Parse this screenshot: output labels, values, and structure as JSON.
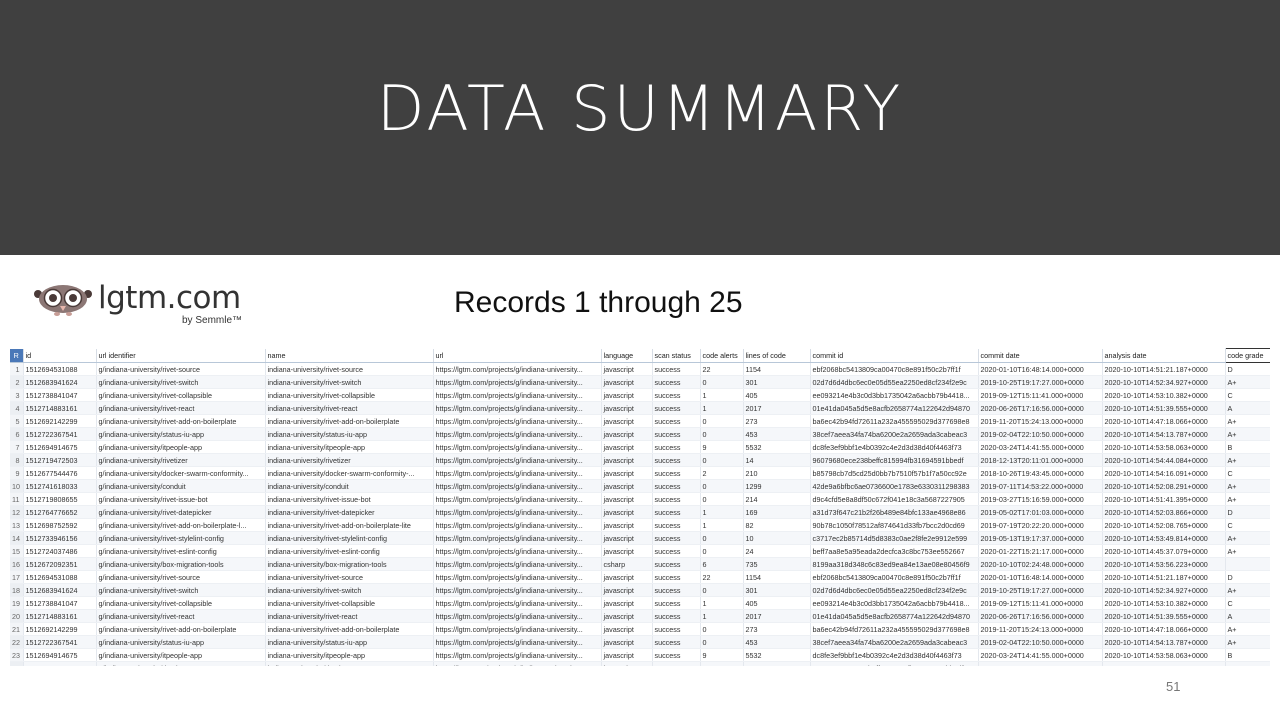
{
  "slide": {
    "title": "DATA SUMMARY",
    "subtitle": "Records 1 through 25",
    "page_number": "51"
  },
  "logo": {
    "text": "lgtm.com",
    "byline": "by Semmle™"
  },
  "grid": {
    "corner": "R",
    "columns": [
      "id",
      "url identifier",
      "name",
      "url",
      "language",
      "scan status",
      "code alerts",
      "lines of code",
      "commit id",
      "commit date",
      "analysis date",
      "code grade"
    ],
    "rows": [
      [
        "1",
        "1512694531088",
        "g/indiana-university/rivet-source",
        "indiana-university/rivet-source",
        "https://lgtm.com/projects/g/indiana-university...",
        "javascript",
        "success",
        "22",
        "1154",
        "ebf2068bc5413809ca00470c8e891f50c2b7ff1f",
        "2020-01-10T16:48:14.000+0000",
        "2020-10-10T14:51:21.187+0000",
        "D"
      ],
      [
        "2",
        "1512683941624",
        "g/indiana-university/rivet-switch",
        "indiana-university/rivet-switch",
        "https://lgtm.com/projects/g/indiana-university...",
        "javascript",
        "success",
        "0",
        "301",
        "02d7d6d4dbc6ec0e05d55ea2250ed8cf234f2e9c",
        "2019-10-25T19:17:27.000+0000",
        "2020-10-10T14:52:34.927+0000",
        "A+"
      ],
      [
        "3",
        "1512738841047",
        "g/indiana-university/rivet-collapsible",
        "indiana-university/rivet-collapsible",
        "https://lgtm.com/projects/g/indiana-university...",
        "javascript",
        "success",
        "1",
        "405",
        "ee093214e4b3c0d3bb1735042a6acbb79b4418...",
        "2019-09-12T15:11:41.000+0000",
        "2020-10-10T14:53:10.382+0000",
        "C"
      ],
      [
        "4",
        "1512714883161",
        "g/indiana-university/rivet-react",
        "indiana-university/rivet-react",
        "https://lgtm.com/projects/g/indiana-university...",
        "javascript",
        "success",
        "1",
        "2017",
        "01e41da045a5d5e8acfb2658774a122642d94870",
        "2020-06-26T17:16:56.000+0000",
        "2020-10-10T14:51:39.555+0000",
        "A"
      ],
      [
        "5",
        "1512692142299",
        "g/indiana-university/rivet-add-on-boilerplate",
        "indiana-university/rivet-add-on-boilerplate",
        "https://lgtm.com/projects/g/indiana-university...",
        "javascript",
        "success",
        "0",
        "273",
        "ba6ec42b94fd72611a232a455595029d377698e8",
        "2019-11-20T15:24:13.000+0000",
        "2020-10-10T14:47:18.066+0000",
        "A+"
      ],
      [
        "6",
        "1512722367541",
        "g/indiana-university/status-iu-app",
        "indiana-university/status-iu-app",
        "https://lgtm.com/projects/g/indiana-university...",
        "javascript",
        "success",
        "0",
        "453",
        "38cef7aeea34fa74ba6200e2a2659ada3cabeac3",
        "2019-02-04T22:10:50.000+0000",
        "2020-10-10T14:54:13.787+0000",
        "A+"
      ],
      [
        "7",
        "1512694914675",
        "g/indiana-university/itpeople-app",
        "indiana-university/itpeople-app",
        "https://lgtm.com/projects/g/indiana-university...",
        "javascript",
        "success",
        "9",
        "5532",
        "dc8fe3ef9bbf1e4b0392c4e2d3d38d40f4463f73",
        "2020-03-24T14:41:55.000+0000",
        "2020-10-10T14:53:58.063+0000",
        "B"
      ],
      [
        "8",
        "1512719472503",
        "g/indiana-university/rivetizer",
        "indiana-university/rivetizer",
        "https://lgtm.com/projects/g/indiana-university...",
        "javascript",
        "success",
        "0",
        "14",
        "96079680ece238beffc815994fb31694591bbedf",
        "2018-12-13T20:11:01.000+0000",
        "2020-10-10T14:54:44.084+0000",
        "A+"
      ],
      [
        "9",
        "1512677544476",
        "g/indiana-university/docker-swarm-conformity...",
        "indiana-university/docker-swarm-conformity-...",
        "https://lgtm.com/projects/g/indiana-university...",
        "javascript",
        "success",
        "2",
        "210",
        "b85798cb7d5cd25d0bb7b7510f57b1f7a50cc92e",
        "2018-10-26T19:43:45.000+0000",
        "2020-10-10T14:54:16.091+0000",
        "C"
      ],
      [
        "10",
        "1512741618033",
        "g/indiana-university/conduit",
        "indiana-university/conduit",
        "https://lgtm.com/projects/g/indiana-university...",
        "javascript",
        "success",
        "0",
        "1299",
        "42de9a6bfbc6ae0736600e1783e6330311298383",
        "2019-07-11T14:53:22.000+0000",
        "2020-10-10T14:52:08.291+0000",
        "A+"
      ],
      [
        "11",
        "1512719808655",
        "g/indiana-university/rivet-issue-bot",
        "indiana-university/rivet-issue-bot",
        "https://lgtm.com/projects/g/indiana-university...",
        "javascript",
        "success",
        "0",
        "214",
        "d9c4cfd5e8a8df50c672f041e18c3a5687227905",
        "2019-03-27T15:16:59.000+0000",
        "2020-10-10T14:51:41.395+0000",
        "A+"
      ],
      [
        "12",
        "1512764776652",
        "g/indiana-university/rivet-datepicker",
        "indiana-university/rivet-datepicker",
        "https://lgtm.com/projects/g/indiana-university...",
        "javascript",
        "success",
        "1",
        "169",
        "a31d73f647c21b2f26b489e84bfc133ae4968e86",
        "2019-05-02T17:01:03.000+0000",
        "2020-10-10T14:52:03.866+0000",
        "D"
      ],
      [
        "13",
        "1512698752592",
        "g/indiana-university/rivet-add-on-boilerplate-l...",
        "indiana-university/rivet-add-on-boilerplate-lite",
        "https://lgtm.com/projects/g/indiana-university...",
        "javascript",
        "success",
        "1",
        "82",
        "90b78c1050f78512af874641d33fb7bcc2d0cd69",
        "2019-07-19T20:22:20.000+0000",
        "2020-10-10T14:52:08.765+0000",
        "C"
      ],
      [
        "14",
        "1512733946156",
        "g/indiana-university/rivet-stylelint-config",
        "indiana-university/rivet-stylelint-config",
        "https://lgtm.com/projects/g/indiana-university...",
        "javascript",
        "success",
        "0",
        "10",
        "c3717ec2b85714d5d8383c0ae2f8fe2e9912e599",
        "2019-05-13T19:17:37.000+0000",
        "2020-10-10T14:53:49.814+0000",
        "A+"
      ],
      [
        "15",
        "1512724037486",
        "g/indiana-university/rivet-eslint-config",
        "indiana-university/rivet-eslint-config",
        "https://lgtm.com/projects/g/indiana-university...",
        "javascript",
        "success",
        "0",
        "24",
        "beff7aa8e5a95eada2decfca3c8bc753ee552667",
        "2020-01-22T15:21:17.000+0000",
        "2020-10-10T14:45:37.079+0000",
        "A+"
      ],
      [
        "16",
        "1512672092351",
        "g/indiana-university/box-migration-tools",
        "indiana-university/box-migration-tools",
        "https://lgtm.com/projects/g/indiana-university...",
        "csharp",
        "success",
        "6",
        "735",
        "8199aa318d348c6c83ed9ea84e13ae08e80456f9",
        "2020-10-10T02:24:48.000+0000",
        "2020-10-10T14:53:56.223+0000",
        ""
      ],
      [
        "17",
        "1512694531088",
        "g/indiana-university/rivet-source",
        "indiana-university/rivet-source",
        "https://lgtm.com/projects/g/indiana-university...",
        "javascript",
        "success",
        "22",
        "1154",
        "ebf2068bc5413809ca00470c8e891f50c2b7ff1f",
        "2020-01-10T16:48:14.000+0000",
        "2020-10-10T14:51:21.187+0000",
        "D"
      ],
      [
        "18",
        "1512683941624",
        "g/indiana-university/rivet-switch",
        "indiana-university/rivet-switch",
        "https://lgtm.com/projects/g/indiana-university...",
        "javascript",
        "success",
        "0",
        "301",
        "02d7d6d4dbc6ec0e05d55ea2250ed8cf234f2e9c",
        "2019-10-25T19:17:27.000+0000",
        "2020-10-10T14:52:34.927+0000",
        "A+"
      ],
      [
        "19",
        "1512738841047",
        "g/indiana-university/rivet-collapsible",
        "indiana-university/rivet-collapsible",
        "https://lgtm.com/projects/g/indiana-university...",
        "javascript",
        "success",
        "1",
        "405",
        "ee093214e4b3c0d3bb1735042a6acbb79b4418...",
        "2019-09-12T15:11:41.000+0000",
        "2020-10-10T14:53:10.382+0000",
        "C"
      ],
      [
        "20",
        "1512714883161",
        "g/indiana-university/rivet-react",
        "indiana-university/rivet-react",
        "https://lgtm.com/projects/g/indiana-university...",
        "javascript",
        "success",
        "1",
        "2017",
        "01e41da045a5d5e8acfb2658774a122642d94870",
        "2020-06-26T17:16:56.000+0000",
        "2020-10-10T14:51:39.555+0000",
        "A"
      ],
      [
        "21",
        "1512692142299",
        "g/indiana-university/rivet-add-on-boilerplate",
        "indiana-university/rivet-add-on-boilerplate",
        "https://lgtm.com/projects/g/indiana-university...",
        "javascript",
        "success",
        "0",
        "273",
        "ba6ec42b94fd72611a232a455595029d377698e8",
        "2019-11-20T15:24:13.000+0000",
        "2020-10-10T14:47:18.066+0000",
        "A+"
      ],
      [
        "22",
        "1512722367541",
        "g/indiana-university/status-iu-app",
        "indiana-university/status-iu-app",
        "https://lgtm.com/projects/g/indiana-university...",
        "javascript",
        "success",
        "0",
        "453",
        "38cef7aeea34fa74ba6200e2a2659ada3cabeac3",
        "2019-02-04T22:10:50.000+0000",
        "2020-10-10T14:54:13.787+0000",
        "A+"
      ],
      [
        "23",
        "1512694914675",
        "g/indiana-university/itpeople-app",
        "indiana-university/itpeople-app",
        "https://lgtm.com/projects/g/indiana-university...",
        "javascript",
        "success",
        "9",
        "5532",
        "dc8fe3ef9bbf1e4b0392c4e2d3d38d40f4463f73",
        "2020-03-24T14:41:55.000+0000",
        "2020-10-10T14:53:58.063+0000",
        "B"
      ],
      [
        "24",
        "1512719472503",
        "g/indiana-university/rivetizer",
        "indiana-university/rivetizer",
        "https://lgtm.com/projects/g/indiana-university...",
        "javascript",
        "success",
        "0",
        "14",
        "96079680ece238beffc815994fb31694591bbedf",
        "2018-12-13T20:11:01.000+0000",
        "2020-10-10T14:54:44.084+0000",
        "A+"
      ],
      [
        "25",
        "1512677544476",
        "g/indiana-university/docker-swarm-conformity...",
        "indiana-university/docker-swarm-conformity-...",
        "https://lgtm.com/projects/g/indiana-university...",
        "javascript",
        "success",
        "2",
        "210",
        "b85798cb7d5cd25d0bb7b7510f57b1f7a50cc92e",
        "2018-10-26T19:43:45.000+0000",
        "2020-10-10T14:54:16.091+0000",
        "C"
      ]
    ]
  }
}
